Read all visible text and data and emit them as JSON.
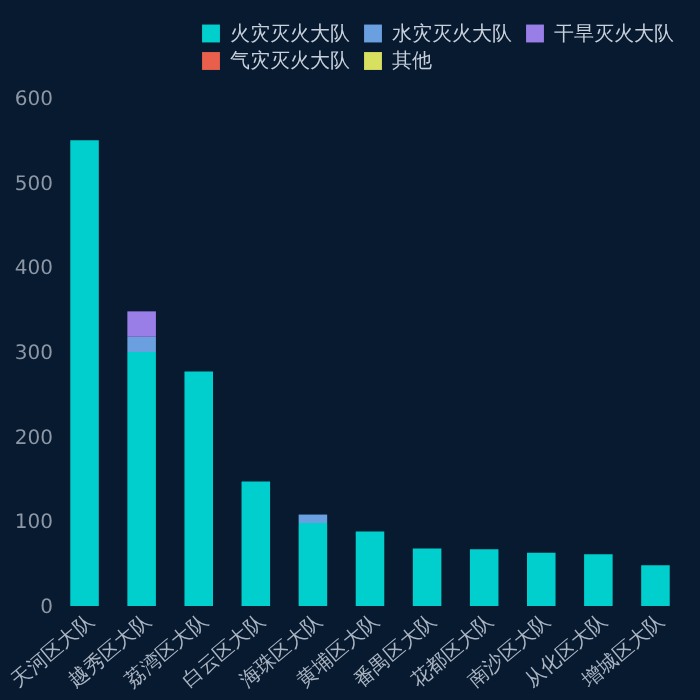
{
  "chart_data": {
    "type": "bar",
    "stacked": true,
    "categories": [
      "天河区大队",
      "越秀区大队",
      "荔湾区大队",
      "白云区大队",
      "海珠区大队",
      "黄埔区大队",
      "番禺区大队",
      "花都区大队",
      "南沙区大队",
      "从化区大队",
      "增城区大队"
    ],
    "series": [
      {
        "name": "火灾灭火大队",
        "color": "#00cfcd",
        "values": [
          550,
          300,
          277,
          147,
          98,
          88,
          68,
          67,
          63,
          61,
          48
        ]
      },
      {
        "name": "水灾灭火大队",
        "color": "#6a9fe0",
        "values": [
          null,
          18,
          null,
          null,
          10,
          null,
          null,
          null,
          null,
          null,
          null
        ]
      },
      {
        "name": "干旱灭火大队",
        "color": "#9a7ee8",
        "values": [
          null,
          30,
          null,
          null,
          null,
          null,
          null,
          null,
          null,
          null,
          null
        ]
      },
      {
        "name": "气灾灭火大队",
        "color": "#e8604c",
        "values": [
          null,
          null,
          null,
          null,
          null,
          null,
          null,
          null,
          null,
          null,
          null
        ]
      },
      {
        "name": "其他",
        "color": "#d8e060",
        "values": [
          null,
          null,
          null,
          null,
          null,
          null,
          null,
          null,
          null,
          null,
          null
        ]
      }
    ],
    "ylim": [
      0,
      600
    ],
    "yticks": [
      0,
      100,
      200,
      300,
      400,
      500,
      600
    ],
    "grid": false,
    "legend": "top right"
  }
}
